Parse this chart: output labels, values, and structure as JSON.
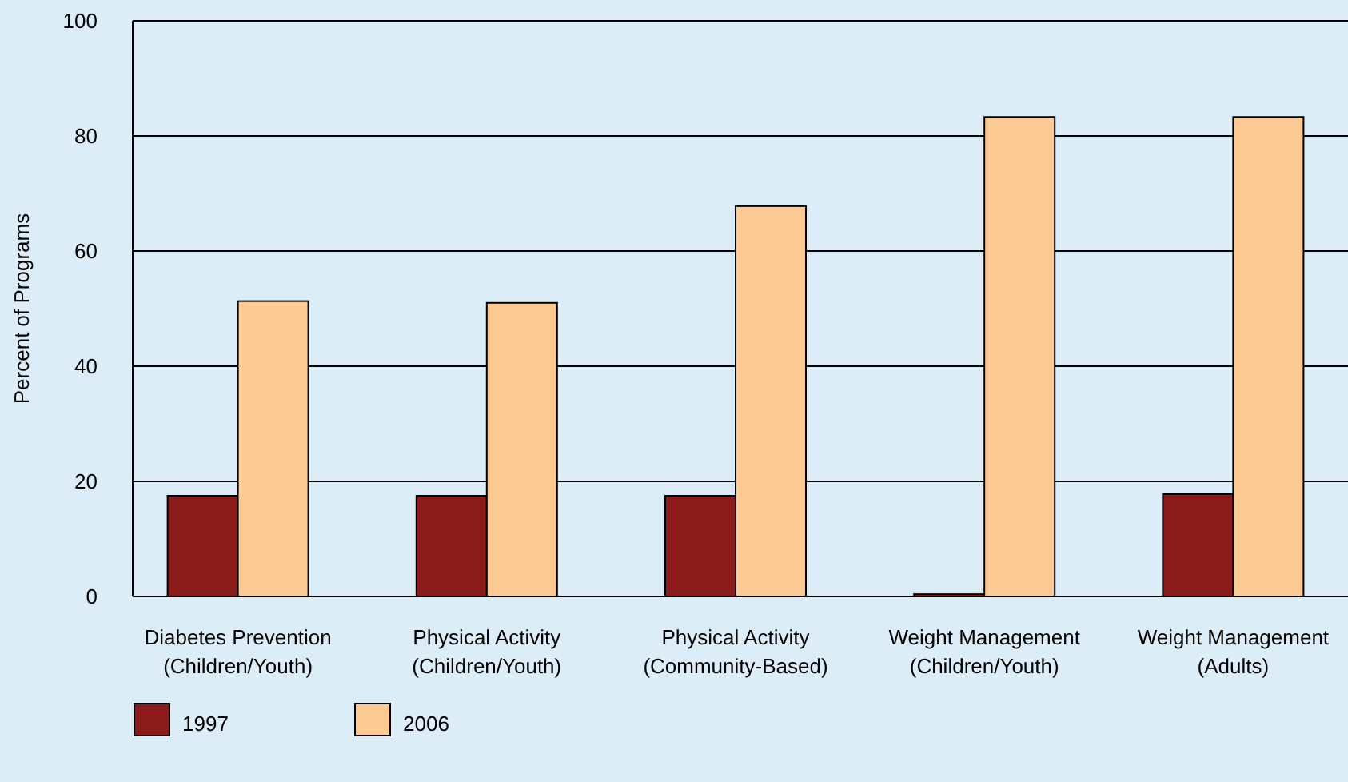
{
  "chart_data": {
    "type": "bar",
    "ylabel": "Percent of Programs",
    "categories": [
      "Diabetes Prevention\n(Children/Youth)",
      "Physical Activity\n(Children/Youth)",
      "Physical Activity\n(Community-Based)",
      "Weight Management\n(Children/Youth)",
      "Weight Management\n(Adults)"
    ],
    "series": [
      {
        "name": "1997",
        "color": "#8b1a1a",
        "values": [
          17.5,
          17.5,
          17.5,
          0.4,
          17.8
        ]
      },
      {
        "name": "2006",
        "color": "#fdca94",
        "values": [
          51.3,
          51,
          67.8,
          83.3,
          83.3
        ]
      }
    ],
    "ylim": [
      0,
      100
    ],
    "yticks": [
      0,
      20,
      40,
      60,
      80,
      100
    ],
    "grid": "y",
    "legend": "bottom left"
  }
}
